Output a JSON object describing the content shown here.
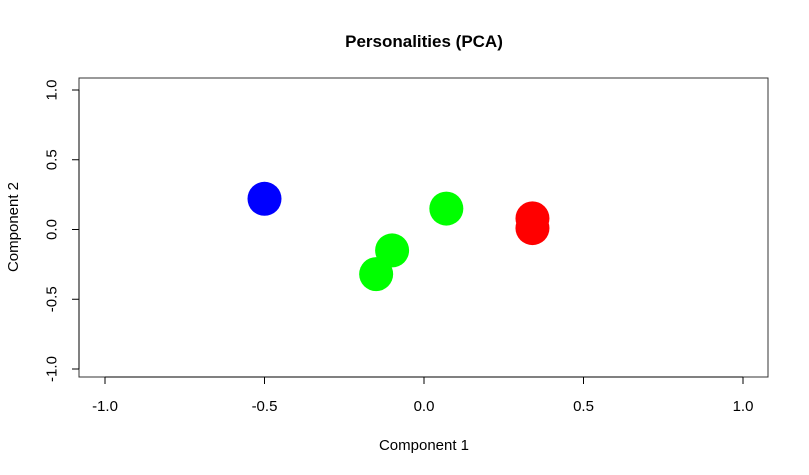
{
  "chart_data": {
    "type": "scatter",
    "title": "Personalities (PCA)",
    "xlabel": "Component 1",
    "ylabel": "Component 2",
    "xlim": [
      -1.0,
      1.0
    ],
    "ylim": [
      -1.0,
      1.0
    ],
    "x_ticks": [
      "-1.0",
      "-0.5",
      "0.0",
      "0.5",
      "1.0"
    ],
    "y_ticks": [
      "-1.0",
      "-0.5",
      "0.0",
      "0.5",
      "1.0"
    ],
    "grid": false,
    "legend": "none",
    "points": [
      {
        "x": -0.5,
        "y": 0.22,
        "color": "#0000ff"
      },
      {
        "x": -0.1,
        "y": -0.15,
        "color": "#00ff00"
      },
      {
        "x": -0.15,
        "y": -0.32,
        "color": "#00ff00"
      },
      {
        "x": 0.07,
        "y": 0.15,
        "color": "#00ff00"
      },
      {
        "x": 0.34,
        "y": 0.08,
        "color": "#ff0000"
      },
      {
        "x": 0.34,
        "y": 0.01,
        "color": "#ff0000"
      }
    ]
  }
}
